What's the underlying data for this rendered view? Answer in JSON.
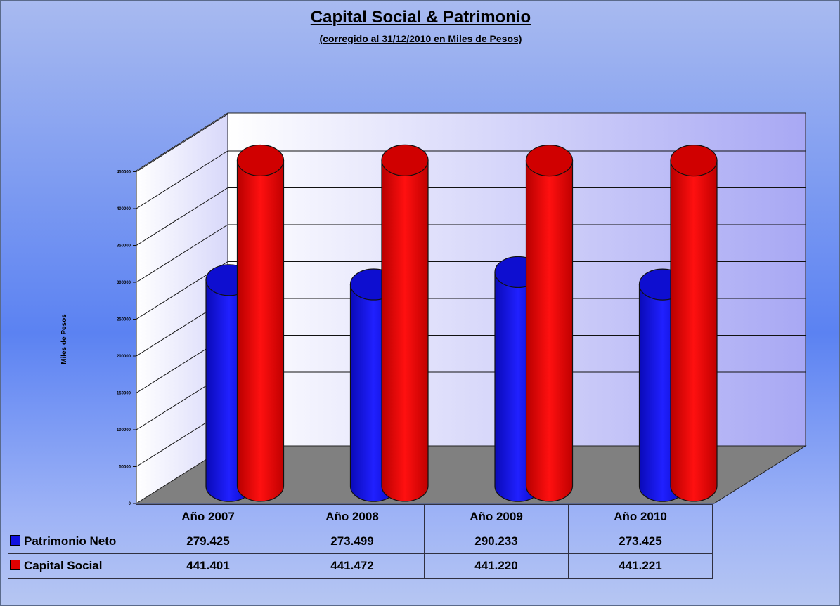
{
  "chart_data": {
    "type": "bar",
    "title": "Capital Social & Patrimonio",
    "subtitle": "(corregido al 31/12/2010 en Miles de Pesos)",
    "ylabel": "Miles de Pesos",
    "xlabel": "",
    "ylim": [
      0,
      450000
    ],
    "yticks": [
      "0",
      "50000",
      "100000",
      "150000",
      "200000",
      "250000",
      "300000",
      "350000",
      "400000",
      "450000"
    ],
    "categories": [
      "Año 2007",
      "Año 2008",
      "Año 2009",
      "Año 2010"
    ],
    "series": [
      {
        "name": "Patrimonio Neto",
        "color": "#1010e0",
        "values": [
          279425,
          273499,
          290233,
          273425
        ],
        "labels": [
          "279.425",
          "273.499",
          "290.233",
          "273.425"
        ]
      },
      {
        "name": "Capital Social",
        "color": "#e00000",
        "values": [
          441401,
          441472,
          441220,
          441221
        ],
        "labels": [
          "441.401",
          "441.472",
          "441.220",
          "441.221"
        ]
      }
    ],
    "grid": true,
    "legend": "data-table"
  }
}
